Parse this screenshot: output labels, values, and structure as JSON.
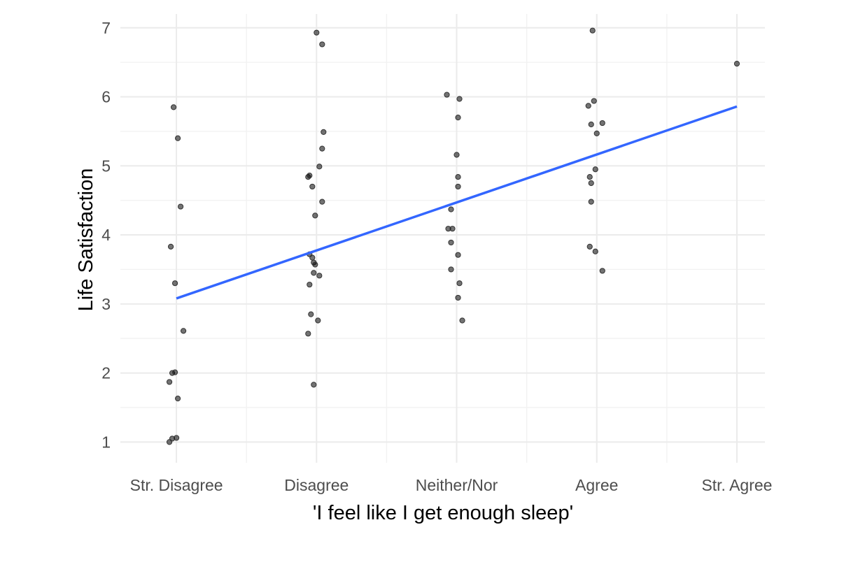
{
  "chart_data": {
    "type": "scatter",
    "xlabel": "'I feel like I get enough sleep'",
    "ylabel": "Life Satisfaction",
    "x_categories": [
      "Str. Disagree",
      "Disagree",
      "Neither/Nor",
      "Agree",
      "Str. Agree"
    ],
    "x_range": [
      0.6,
      5.2
    ],
    "ylim": [
      0.7,
      7.2
    ],
    "y_ticks": [
      1,
      2,
      3,
      4,
      5,
      6,
      7
    ],
    "grid": true,
    "points_color": "#000000",
    "fit_line": {
      "color": "#3366FF",
      "x": [
        1,
        5
      ],
      "y": [
        3.08,
        5.86
      ]
    },
    "points": [
      {
        "x": 0.98,
        "y": 5.85
      },
      {
        "x": 1.01,
        "y": 5.4
      },
      {
        "x": 1.03,
        "y": 4.41
      },
      {
        "x": 0.96,
        "y": 3.83
      },
      {
        "x": 0.99,
        "y": 3.3
      },
      {
        "x": 1.05,
        "y": 2.61
      },
      {
        "x": 0.97,
        "y": 2.0
      },
      {
        "x": 0.99,
        "y": 2.01
      },
      {
        "x": 0.95,
        "y": 1.87
      },
      {
        "x": 1.01,
        "y": 1.63
      },
      {
        "x": 0.95,
        "y": 1.0
      },
      {
        "x": 0.97,
        "y": 1.05
      },
      {
        "x": 1.0,
        "y": 1.06
      },
      {
        "x": 2.0,
        "y": 6.93
      },
      {
        "x": 2.04,
        "y": 6.76
      },
      {
        "x": 2.05,
        "y": 5.49
      },
      {
        "x": 2.04,
        "y": 5.25
      },
      {
        "x": 2.02,
        "y": 4.99
      },
      {
        "x": 1.94,
        "y": 4.84
      },
      {
        "x": 1.95,
        "y": 4.86
      },
      {
        "x": 1.97,
        "y": 4.7
      },
      {
        "x": 2.04,
        "y": 4.48
      },
      {
        "x": 1.99,
        "y": 4.28
      },
      {
        "x": 1.95,
        "y": 3.72
      },
      {
        "x": 1.97,
        "y": 3.67
      },
      {
        "x": 1.98,
        "y": 3.6
      },
      {
        "x": 1.99,
        "y": 3.57
      },
      {
        "x": 1.98,
        "y": 3.45
      },
      {
        "x": 2.02,
        "y": 3.41
      },
      {
        "x": 1.95,
        "y": 3.28
      },
      {
        "x": 1.96,
        "y": 2.85
      },
      {
        "x": 2.01,
        "y": 2.76
      },
      {
        "x": 1.94,
        "y": 2.57
      },
      {
        "x": 1.98,
        "y": 1.83
      },
      {
        "x": 2.93,
        "y": 6.03
      },
      {
        "x": 3.02,
        "y": 5.97
      },
      {
        "x": 3.01,
        "y": 5.7
      },
      {
        "x": 3.0,
        "y": 5.16
      },
      {
        "x": 3.01,
        "y": 4.84
      },
      {
        "x": 3.01,
        "y": 4.7
      },
      {
        "x": 2.96,
        "y": 4.37
      },
      {
        "x": 2.94,
        "y": 4.09
      },
      {
        "x": 2.97,
        "y": 4.09
      },
      {
        "x": 2.96,
        "y": 3.89
      },
      {
        "x": 3.01,
        "y": 3.71
      },
      {
        "x": 2.96,
        "y": 3.5
      },
      {
        "x": 3.02,
        "y": 3.3
      },
      {
        "x": 3.01,
        "y": 3.09
      },
      {
        "x": 3.04,
        "y": 2.76
      },
      {
        "x": 3.97,
        "y": 6.96
      },
      {
        "x": 3.98,
        "y": 5.94
      },
      {
        "x": 3.94,
        "y": 5.87
      },
      {
        "x": 3.96,
        "y": 5.6
      },
      {
        "x": 4.04,
        "y": 5.62
      },
      {
        "x": 4.0,
        "y": 5.47
      },
      {
        "x": 3.99,
        "y": 4.95
      },
      {
        "x": 3.95,
        "y": 4.84
      },
      {
        "x": 3.96,
        "y": 4.75
      },
      {
        "x": 3.96,
        "y": 4.48
      },
      {
        "x": 3.95,
        "y": 3.83
      },
      {
        "x": 3.99,
        "y": 3.76
      },
      {
        "x": 4.04,
        "y": 3.48
      },
      {
        "x": 5.0,
        "y": 6.48
      }
    ]
  }
}
